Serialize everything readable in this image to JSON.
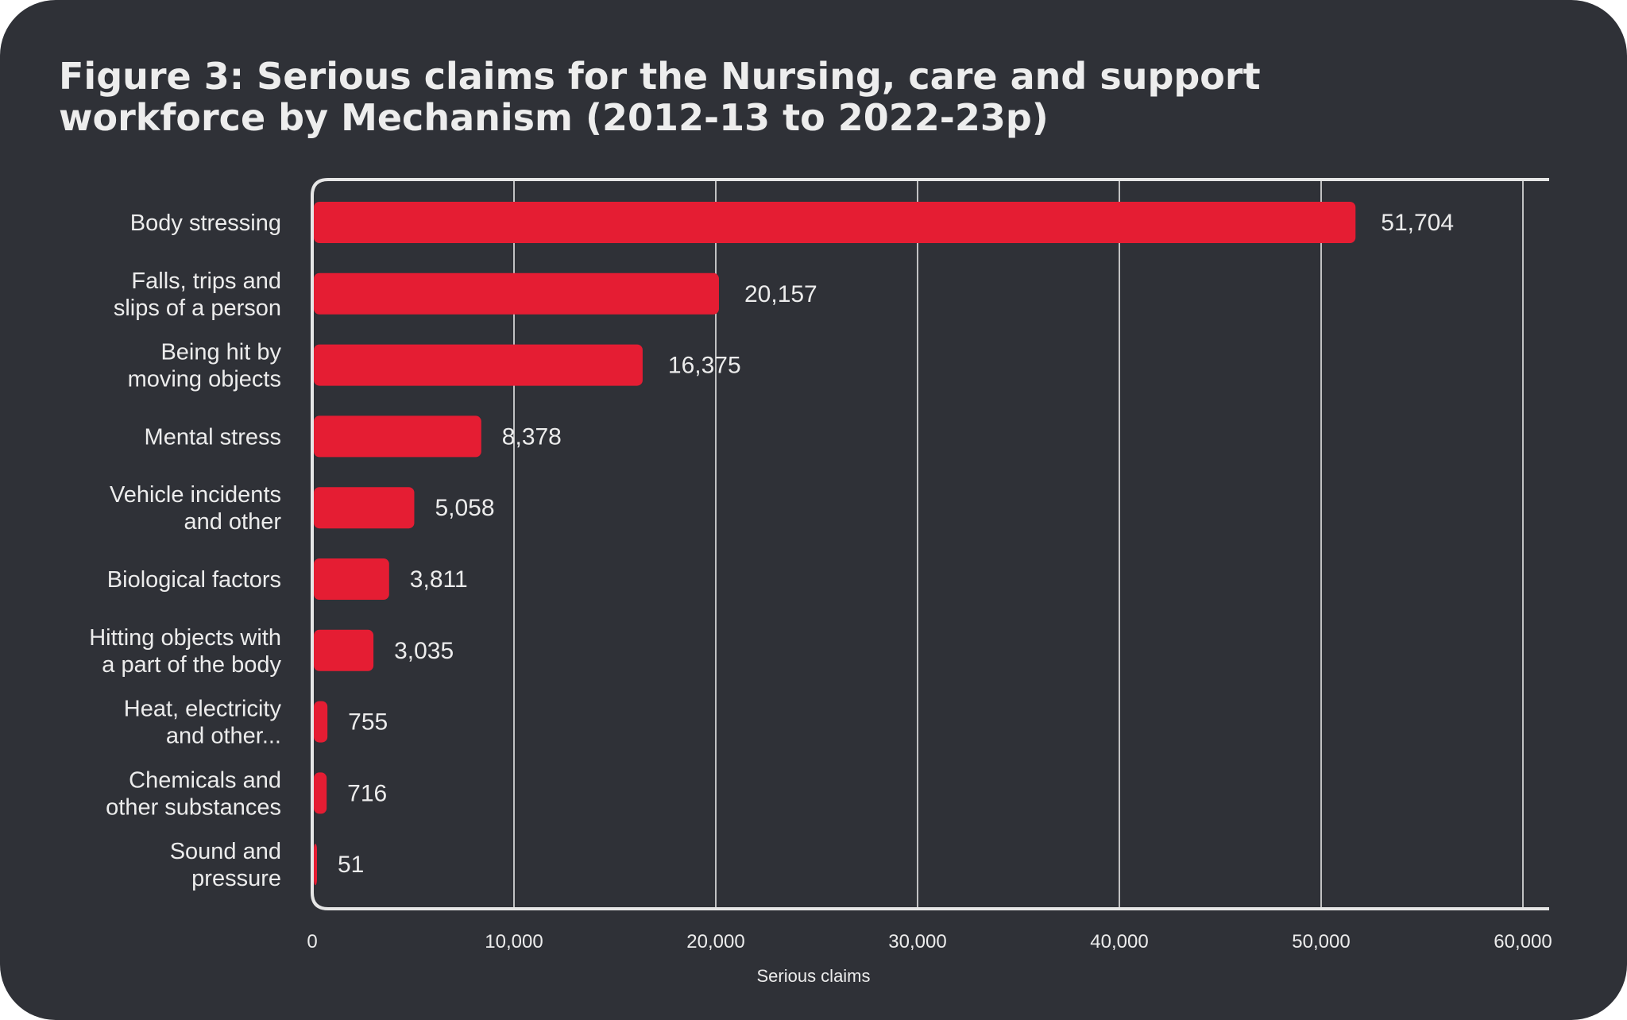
{
  "title_lines": [
    "Figure 3: Serious claims for the Nursing, care and support",
    "workforce by Mechanism (2012-13 to 2022-23p)"
  ],
  "colors": {
    "background": "#2f3137",
    "bar": "#e51d33",
    "text": "#ececec",
    "grid": "#e6e6e6"
  },
  "chart_data": {
    "type": "bar",
    "orientation": "horizontal",
    "title": "Figure 3: Serious claims for the Nursing, care and support workforce by Mechanism (2012-13 to 2022-23p)",
    "xlabel": "Serious claims",
    "ylabel": "",
    "xlim": [
      0,
      60000
    ],
    "ticks": [
      "0",
      "10,000",
      "20,000",
      "30,000",
      "40,000",
      "50,000",
      "60,000"
    ],
    "tick_values": [
      0,
      10000,
      20000,
      30000,
      40000,
      50000,
      60000
    ],
    "grid": true,
    "categories": [
      [
        "Body stressing"
      ],
      [
        "Falls, trips and",
        "slips of a person"
      ],
      [
        "Being hit by",
        "moving objects"
      ],
      [
        "Mental stress"
      ],
      [
        "Vehicle incidents",
        "and other"
      ],
      [
        "Biological factors"
      ],
      [
        "Hitting objects with",
        "a part of the body"
      ],
      [
        "Heat, electricity",
        "and other..."
      ],
      [
        "Chemicals and",
        "other substances"
      ],
      [
        "Sound and",
        "pressure"
      ]
    ],
    "values": [
      51704,
      20157,
      16375,
      8378,
      5058,
      3811,
      3035,
      755,
      716,
      51
    ],
    "value_labels": [
      "51,704",
      "20,157",
      "16,375",
      "8,378",
      "5,058",
      "3,811",
      "3,035",
      "755",
      "716",
      "51"
    ]
  }
}
